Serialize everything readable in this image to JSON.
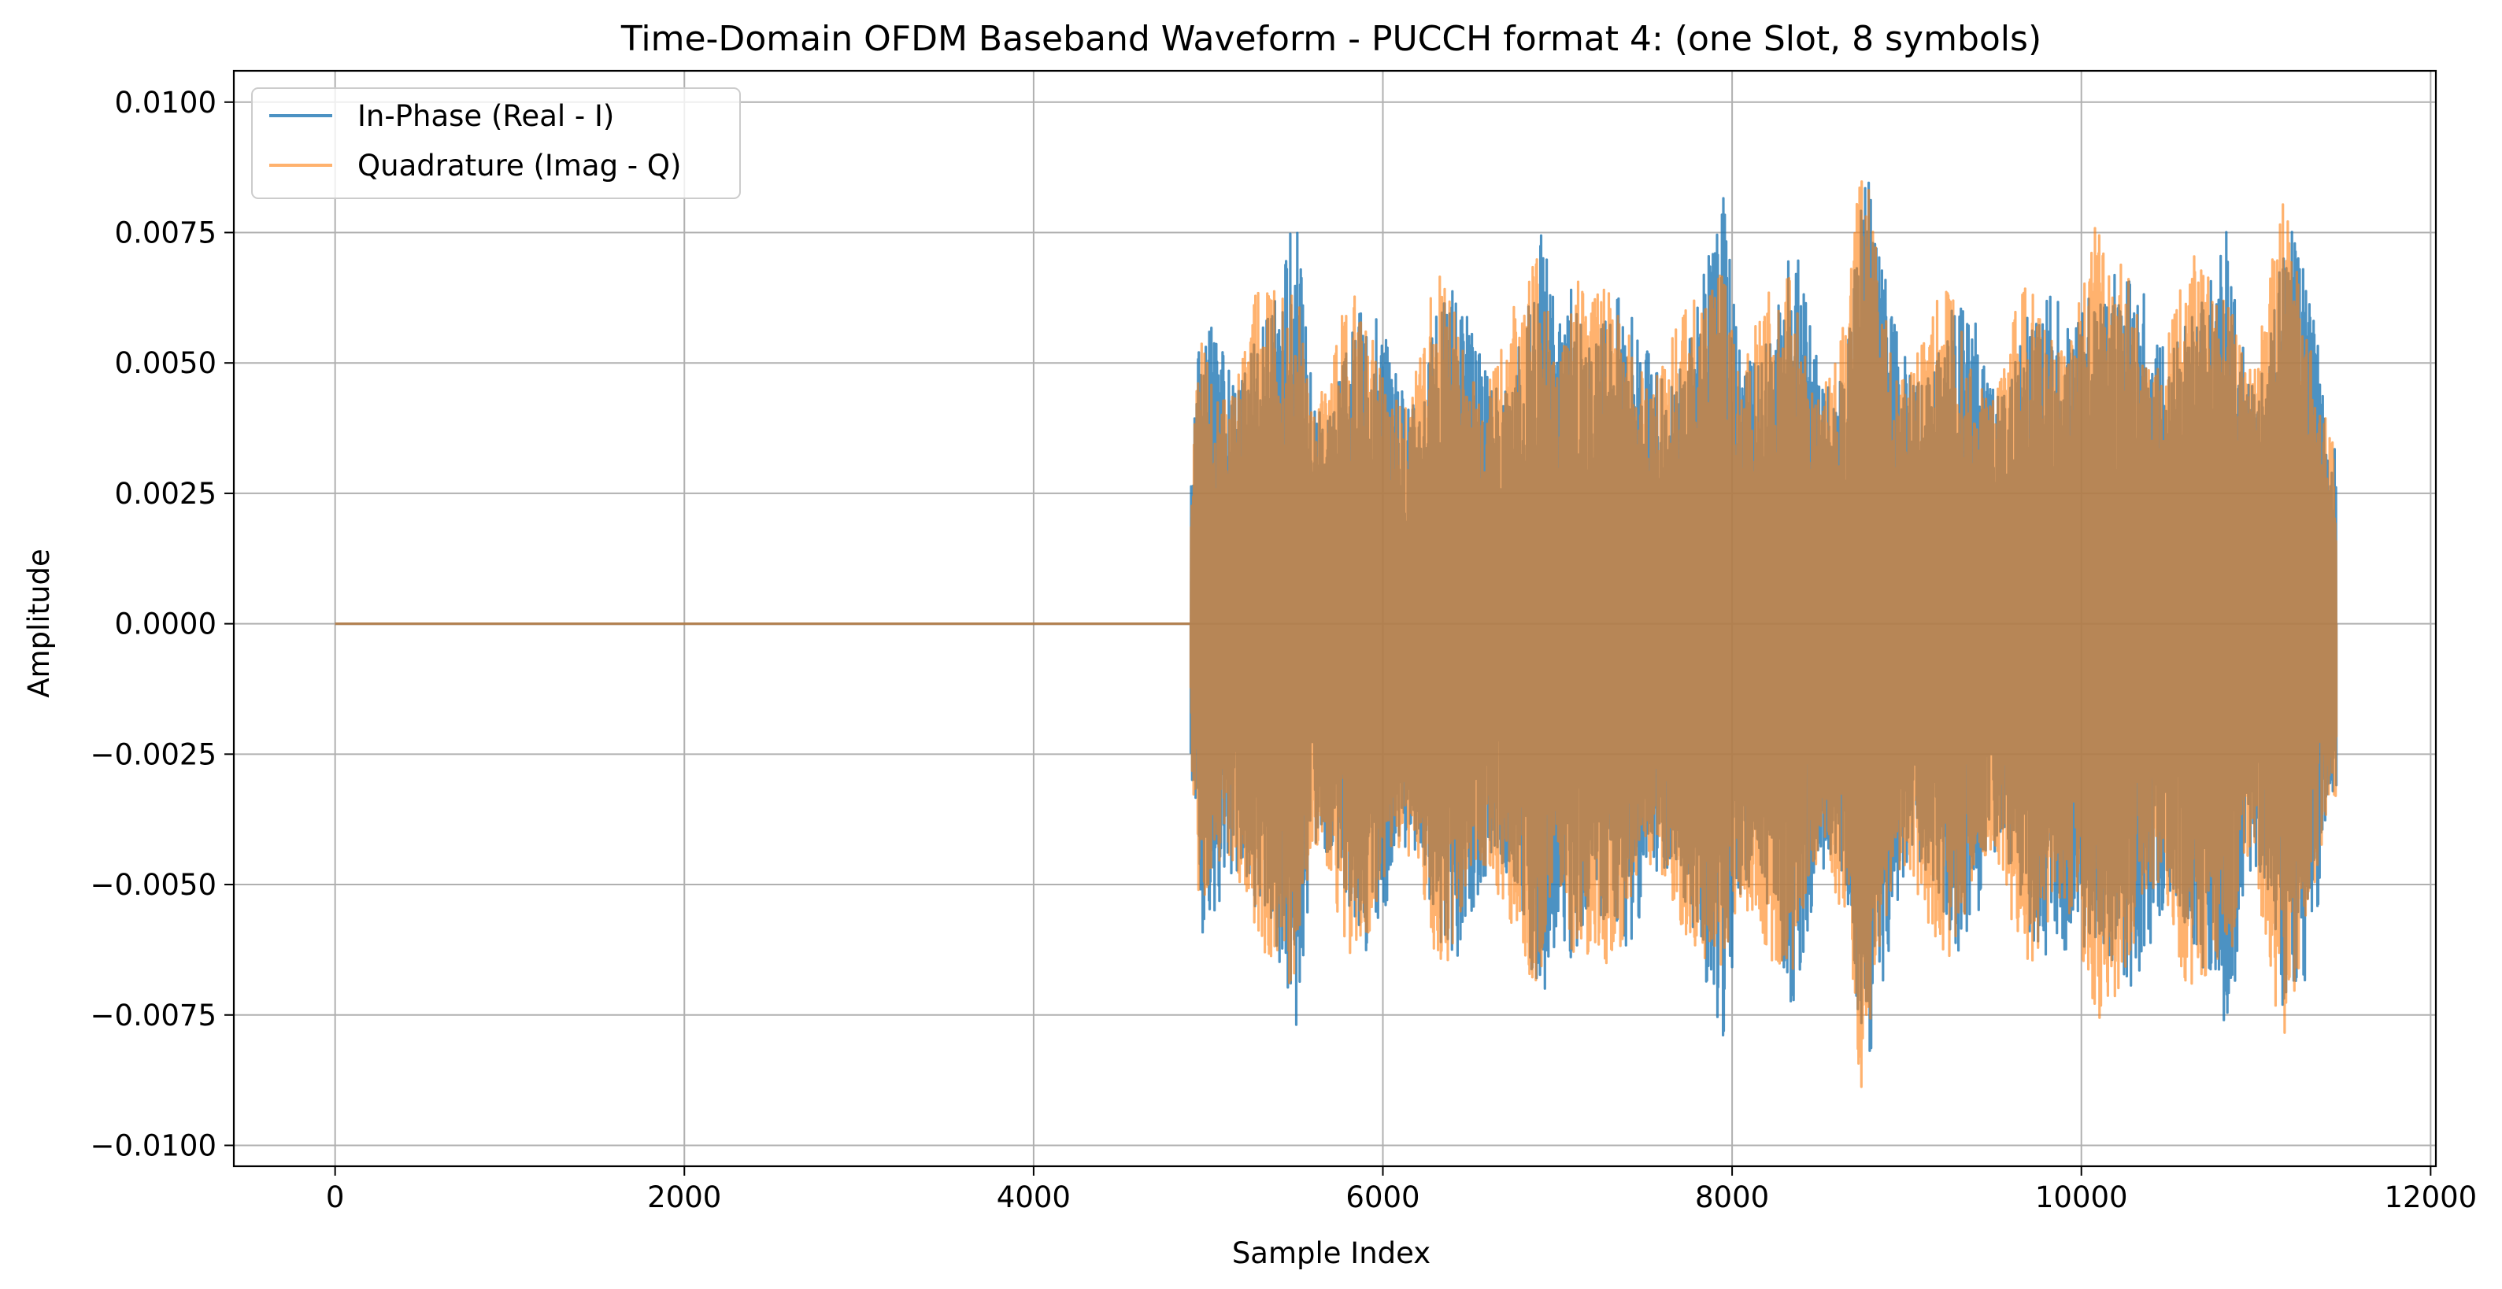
{
  "chart_data": {
    "type": "line",
    "title": "Time-Domain OFDM Baseband Waveform - PUCCH format 4: (one Slot, 8 symbols)",
    "xlabel": "Sample Index",
    "ylabel": "Amplitude",
    "xlim": [
      -580,
      12030
    ],
    "ylim": [
      -0.0104,
      0.0106
    ],
    "grid": true,
    "legend_position": "upper-left",
    "x_ticks": [
      {
        "value": 0,
        "label": "0"
      },
      {
        "value": 2000,
        "label": "2000"
      },
      {
        "value": 4000,
        "label": "4000"
      },
      {
        "value": 6000,
        "label": "6000"
      },
      {
        "value": 8000,
        "label": "8000"
      },
      {
        "value": 10000,
        "label": "10000"
      },
      {
        "value": 12000,
        "label": "12000"
      }
    ],
    "y_ticks": [
      {
        "value": 0.01,
        "label": "0.0100"
      },
      {
        "value": 0.0075,
        "label": "0.0075"
      },
      {
        "value": 0.005,
        "label": "0.0050"
      },
      {
        "value": 0.0025,
        "label": "0.0025"
      },
      {
        "value": 0.0,
        "label": "0.0000"
      },
      {
        "value": -0.0025,
        "label": "−0.0025"
      },
      {
        "value": -0.005,
        "label": "−0.0050"
      },
      {
        "value": -0.0075,
        "label": "−0.0075"
      },
      {
        "value": -0.01,
        "label": "−0.0100"
      }
    ],
    "series": [
      {
        "name": "In-Phase (Real - I)",
        "color": "#1f77b4",
        "opacity": 0.8,
        "x_start": 0,
        "x_end": 11460,
        "zero_until": 4900,
        "envelope": [
          [
            4900,
            0.0027
          ],
          [
            4950,
            0.0059
          ],
          [
            5050,
            0.0061
          ],
          [
            5150,
            0.0066
          ],
          [
            5250,
            0.0073
          ],
          [
            5350,
            0.0065
          ],
          [
            5420,
            0.0069
          ],
          [
            5500,
            0.0084
          ],
          [
            5600,
            0.006
          ],
          [
            5700,
            0.0064
          ],
          [
            5800,
            0.0063
          ],
          [
            5900,
            0.0063
          ],
          [
            6000,
            0.0062
          ],
          [
            6100,
            0.0062
          ],
          [
            6200,
            0.0062
          ],
          [
            6300,
            0.0066
          ],
          [
            6400,
            0.0065
          ],
          [
            6500,
            0.0064
          ],
          [
            6600,
            0.0066
          ],
          [
            6700,
            0.0065
          ],
          [
            6800,
            0.0061
          ],
          [
            6900,
            0.0077
          ],
          [
            7000,
            0.0067
          ],
          [
            7100,
            0.0094
          ],
          [
            7200,
            0.0069
          ],
          [
            7300,
            0.0065
          ],
          [
            7400,
            0.0064
          ],
          [
            7500,
            0.0065
          ],
          [
            7600,
            0.0068
          ],
          [
            7700,
            0.0063
          ],
          [
            7800,
            0.0063
          ],
          [
            7880,
            0.0073
          ],
          [
            7950,
            0.0093
          ],
          [
            8050,
            0.0075
          ],
          [
            8150,
            0.0069
          ],
          [
            8250,
            0.0064
          ],
          [
            8350,
            0.0074
          ],
          [
            8450,
            0.0065
          ],
          [
            8550,
            0.0066
          ],
          [
            8650,
            0.0065
          ],
          [
            8750,
            0.0093
          ],
          [
            8850,
            0.0072
          ],
          [
            8950,
            0.0066
          ],
          [
            9050,
            0.0069
          ],
          [
            9150,
            0.0063
          ],
          [
            9250,
            0.0064
          ],
          [
            9350,
            0.0063
          ],
          [
            9450,
            0.0064
          ],
          [
            9550,
            0.0063
          ],
          [
            9650,
            0.0068
          ],
          [
            9750,
            0.0063
          ],
          [
            9850,
            0.0064
          ],
          [
            9950,
            0.0081
          ],
          [
            10050,
            0.0093
          ],
          [
            10150,
            0.0074
          ],
          [
            10250,
            0.007
          ],
          [
            10350,
            0.0071
          ],
          [
            10450,
            0.0075
          ],
          [
            10550,
            0.0076
          ],
          [
            10650,
            0.0072
          ],
          [
            10750,
            0.0066
          ],
          [
            10850,
            0.0088
          ],
          [
            10950,
            0.0067
          ],
          [
            11050,
            0.0067
          ],
          [
            11150,
            0.008
          ],
          [
            11250,
            0.0073
          ],
          [
            11350,
            0.0064
          ],
          [
            11440,
            0.0048
          ]
        ]
      },
      {
        "name": "Quadrature (Imag - Q)",
        "color": "#ff7f0e",
        "opacity": 0.6,
        "x_start": 0,
        "x_end": 11460,
        "zero_until": 4900,
        "envelope": [
          [
            4900,
            0.0025
          ],
          [
            4950,
            0.0059
          ],
          [
            5050,
            0.0061
          ],
          [
            5150,
            0.0065
          ],
          [
            5250,
            0.0072
          ],
          [
            5350,
            0.0066
          ],
          [
            5420,
            0.007
          ],
          [
            5500,
            0.0085
          ],
          [
            5600,
            0.0061
          ],
          [
            5700,
            0.0063
          ],
          [
            5800,
            0.0064
          ],
          [
            5900,
            0.0064
          ],
          [
            6000,
            0.0063
          ],
          [
            6100,
            0.0061
          ],
          [
            6200,
            0.0061
          ],
          [
            6300,
            0.0067
          ],
          [
            6400,
            0.0066
          ],
          [
            6500,
            0.0063
          ],
          [
            6600,
            0.0067
          ],
          [
            6700,
            0.0066
          ],
          [
            6800,
            0.0062
          ],
          [
            6900,
            0.0078
          ],
          [
            7000,
            0.0068
          ],
          [
            7100,
            0.0093
          ],
          [
            7200,
            0.0068
          ],
          [
            7300,
            0.0066
          ],
          [
            7400,
            0.0065
          ],
          [
            7500,
            0.0066
          ],
          [
            7600,
            0.0067
          ],
          [
            7700,
            0.0064
          ],
          [
            7800,
            0.0062
          ],
          [
            7880,
            0.0074
          ],
          [
            7950,
            0.0092
          ],
          [
            8050,
            0.0076
          ],
          [
            8150,
            0.0068
          ],
          [
            8250,
            0.0065
          ],
          [
            8350,
            0.0073
          ],
          [
            8450,
            0.0066
          ],
          [
            8550,
            0.0065
          ],
          [
            8650,
            0.0066
          ],
          [
            8750,
            0.0092
          ],
          [
            8850,
            0.0073
          ],
          [
            8950,
            0.0067
          ],
          [
            9050,
            0.0068
          ],
          [
            9150,
            0.0064
          ],
          [
            9250,
            0.0065
          ],
          [
            9350,
            0.0064
          ],
          [
            9450,
            0.0063
          ],
          [
            9550,
            0.0064
          ],
          [
            9650,
            0.0067
          ],
          [
            9750,
            0.0064
          ],
          [
            9850,
            0.0065
          ],
          [
            9950,
            0.0082
          ],
          [
            10050,
            0.0094
          ],
          [
            10150,
            0.0075
          ],
          [
            10250,
            0.0071
          ],
          [
            10350,
            0.0072
          ],
          [
            10450,
            0.0074
          ],
          [
            10550,
            0.0075
          ],
          [
            10650,
            0.0073
          ],
          [
            10750,
            0.0067
          ],
          [
            10850,
            0.0087
          ],
          [
            10950,
            0.0068
          ],
          [
            11050,
            0.0068
          ],
          [
            11150,
            0.0081
          ],
          [
            11250,
            0.0074
          ],
          [
            11350,
            0.0065
          ],
          [
            11440,
            0.005
          ]
        ]
      }
    ]
  }
}
